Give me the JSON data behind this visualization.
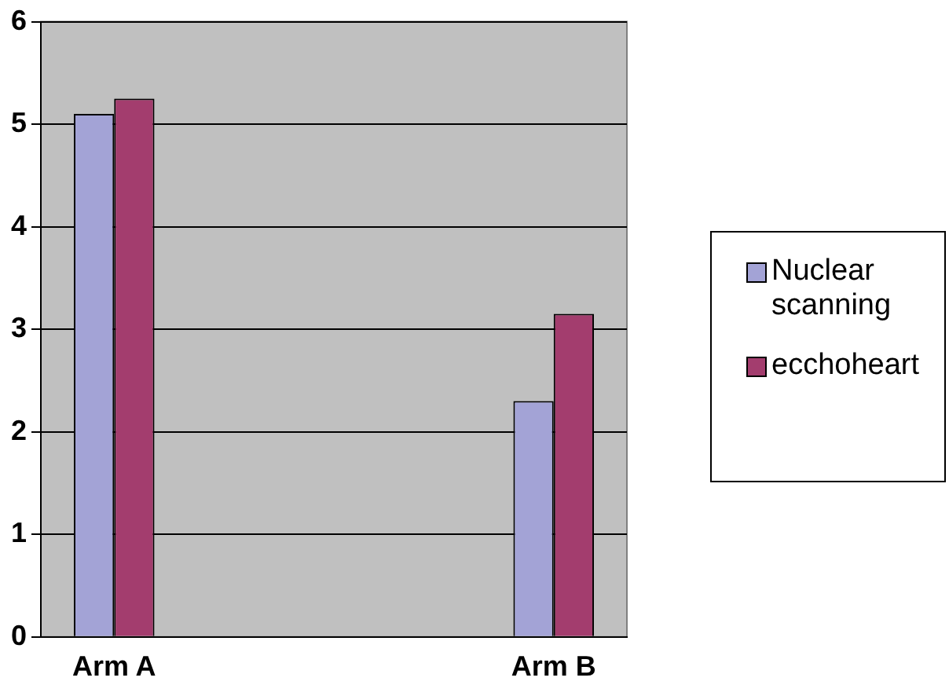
{
  "chart_data": {
    "type": "bar",
    "categories": [
      "Arm A",
      null,
      null,
      "Arm B"
    ],
    "series": [
      {
        "name": "Nuclear scanning",
        "color": "#a3a3d6",
        "values": [
          5.1,
          null,
          null,
          2.3
        ]
      },
      {
        "name": "ecchoheart",
        "color": "#a33d6e",
        "values": [
          5.25,
          null,
          null,
          3.15
        ]
      }
    ],
    "ylim": [
      0,
      6
    ],
    "yticks": [
      0,
      1,
      2,
      3,
      4,
      5,
      6
    ],
    "grid": "y",
    "legend": "right"
  }
}
